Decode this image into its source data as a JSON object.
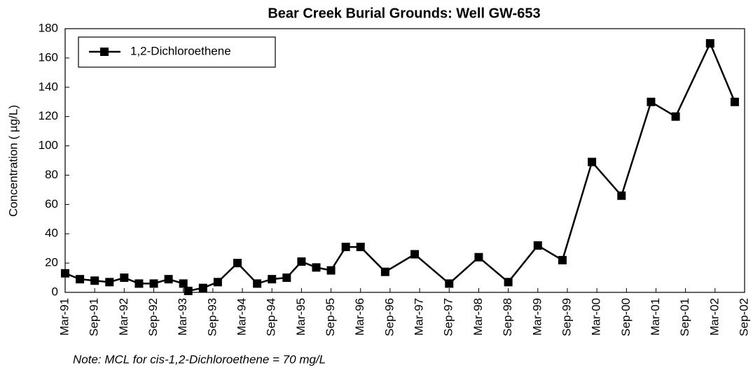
{
  "chart_data": {
    "type": "line",
    "title": "Bear Creek Burial Grounds:  Well GW-653",
    "y_label": "Concentration ( µg/L)",
    "note": "Note: MCL for cis-1,2-Dichloroethene = 70 mg/L",
    "x": [
      "1991-03",
      "1991-06",
      "1991-09",
      "1991-12",
      "1992-03",
      "1992-06",
      "1992-09",
      "1992-12",
      "1993-03",
      "1993-04",
      "1993-07",
      "1993-10",
      "1994-02",
      "1994-06",
      "1994-09",
      "1994-12",
      "1995-03",
      "1995-06",
      "1995-09",
      "1995-12",
      "1996-03",
      "1996-08",
      "1997-02",
      "1997-09",
      "1998-03",
      "1998-09",
      "1999-03",
      "1999-08",
      "2000-02",
      "2000-08",
      "2001-02",
      "2001-07",
      "2002-02",
      "2002-07"
    ],
    "series": [
      {
        "name": "1,2-Dichloroethene",
        "color": "#000000",
        "values": [
          13,
          9,
          8,
          7,
          10,
          6,
          6,
          9,
          6,
          1,
          3,
          7,
          20,
          6,
          9,
          10,
          21,
          17,
          15,
          31,
          31,
          14,
          26,
          6,
          24,
          7,
          32,
          22,
          89,
          66,
          130,
          120,
          170,
          130
        ]
      }
    ],
    "xlim": [
      "1991-03",
      "2002-09"
    ],
    "xticks": [
      {
        "value": "1991-03",
        "label": "Mar-91"
      },
      {
        "value": "1991-09",
        "label": "Sep-91"
      },
      {
        "value": "1992-03",
        "label": "Mar-92"
      },
      {
        "value": "1992-09",
        "label": "Sep-92"
      },
      {
        "value": "1993-03",
        "label": "Mar-93"
      },
      {
        "value": "1993-09",
        "label": "Sep-93"
      },
      {
        "value": "1994-03",
        "label": "Mar-94"
      },
      {
        "value": "1994-09",
        "label": "Sep-94"
      },
      {
        "value": "1995-03",
        "label": "Mar-95"
      },
      {
        "value": "1995-09",
        "label": "Sep-95"
      },
      {
        "value": "1996-03",
        "label": "Mar-96"
      },
      {
        "value": "1996-09",
        "label": "Sep-96"
      },
      {
        "value": "1997-03",
        "label": "Mar-97"
      },
      {
        "value": "1997-09",
        "label": "Sep-97"
      },
      {
        "value": "1998-03",
        "label": "Mar-98"
      },
      {
        "value": "1998-09",
        "label": "Sep-98"
      },
      {
        "value": "1999-03",
        "label": "Mar-99"
      },
      {
        "value": "1999-09",
        "label": "Sep-99"
      },
      {
        "value": "2000-03",
        "label": "Mar-00"
      },
      {
        "value": "2000-09",
        "label": "Sep-00"
      },
      {
        "value": "2001-03",
        "label": "Mar-01"
      },
      {
        "value": "2001-09",
        "label": "Sep-01"
      },
      {
        "value": "2002-03",
        "label": "Mar-02"
      },
      {
        "value": "2002-09",
        "label": "Sep-02"
      }
    ],
    "ylim": [
      0,
      180
    ],
    "yticks": [
      0,
      20,
      40,
      60,
      80,
      100,
      120,
      140,
      160,
      180
    ],
    "legend": "upper left",
    "grid": false
  }
}
